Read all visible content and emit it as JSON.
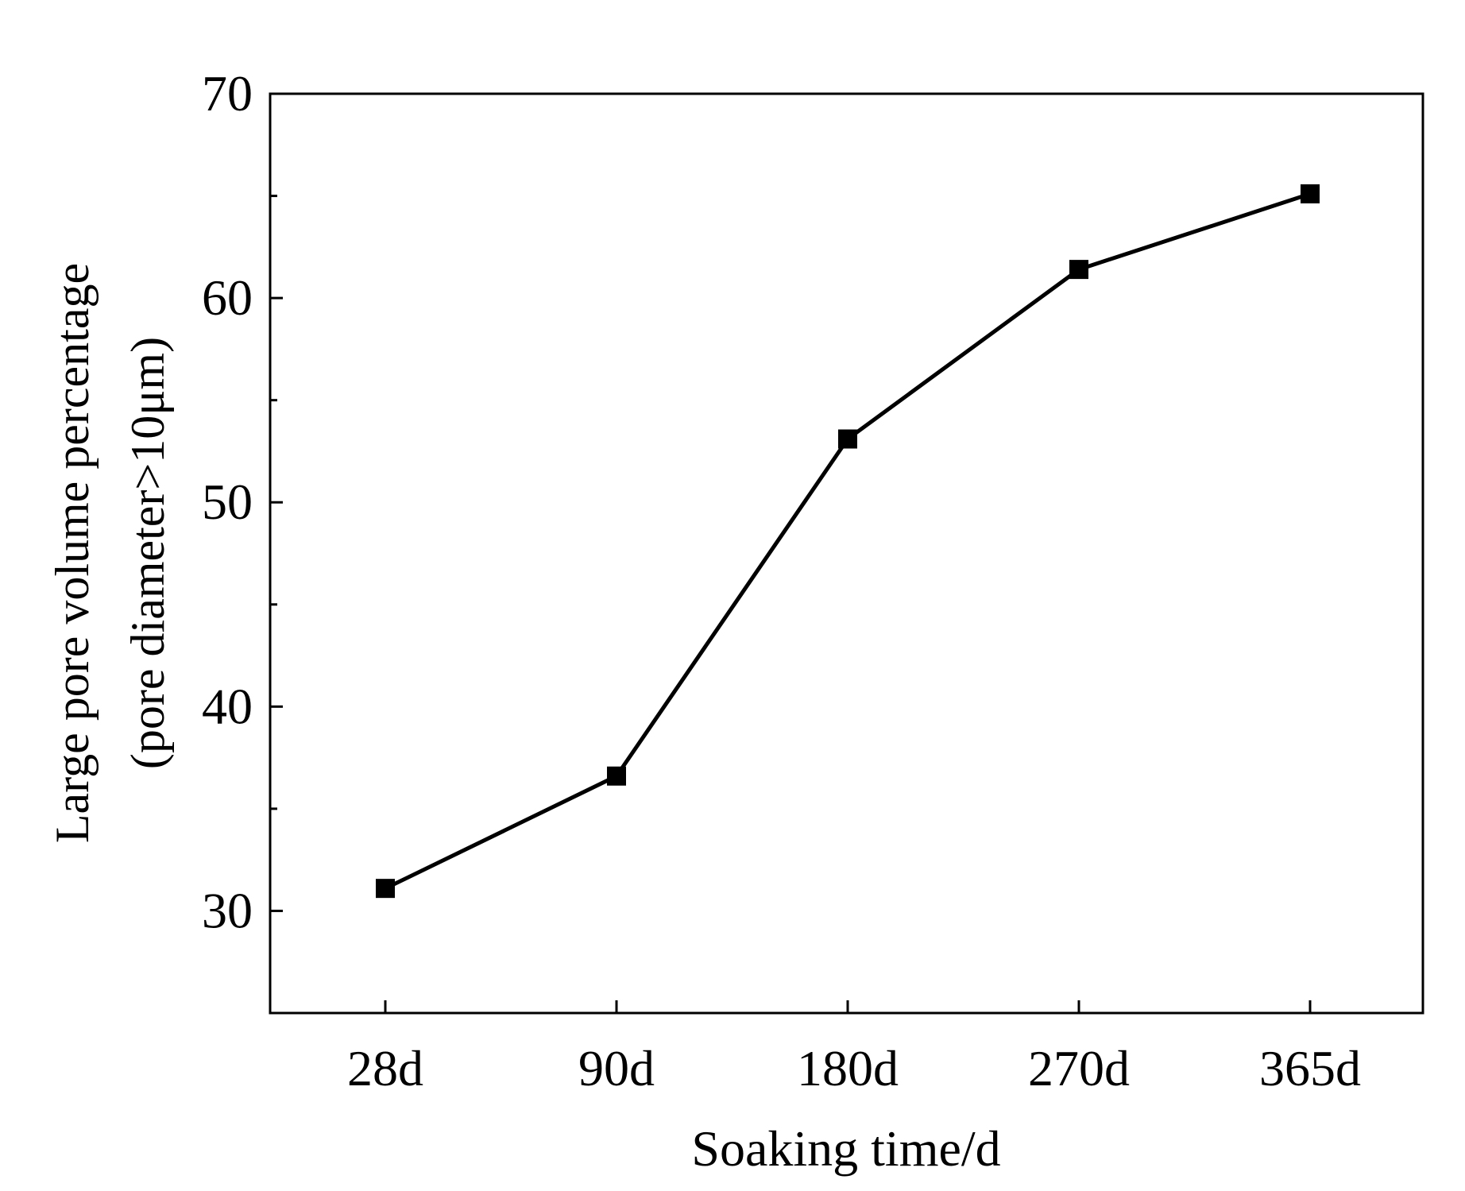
{
  "chart_data": {
    "type": "line",
    "title": "",
    "xlabel": "Soaking time/d",
    "ylabel_line1": "Large pore volume percentage",
    "ylabel_line2": "(pore diameter>10μm)",
    "categories": [
      "28d",
      "90d",
      "180d",
      "270d",
      "365d"
    ],
    "series": [
      {
        "values": [
          31.1,
          36.6,
          53.1,
          61.4,
          65.1
        ],
        "marker": "square",
        "color": "#000000"
      }
    ],
    "ylim": [
      25,
      70
    ],
    "yticks_major": [
      30,
      40,
      50,
      60,
      70
    ],
    "yticks_minor": [
      35,
      45,
      55,
      65
    ],
    "grid": false,
    "legend": "none"
  }
}
